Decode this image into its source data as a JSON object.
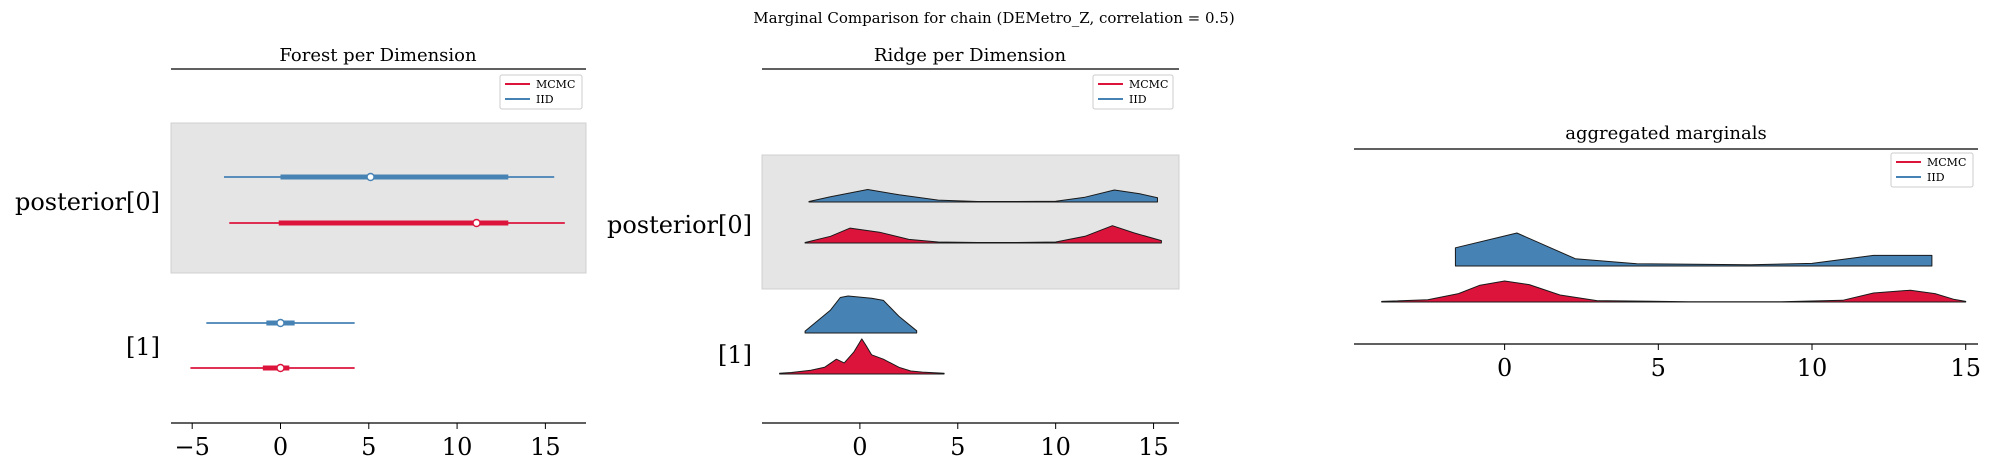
{
  "suptitle": "Marginal Comparison for chain (DEMetro_Z, correlation = 0.5)",
  "colors": {
    "mcmc": "#dc143c",
    "iid": "#4682b4",
    "band": "#e5e5e5"
  },
  "legend": [
    "MCMC",
    "IID"
  ],
  "chart_data": [
    {
      "type": "forest",
      "title": "Forest per Dimension",
      "xlim": [
        -6.2,
        17.3
      ],
      "xticks": [
        -5,
        0,
        5,
        10,
        15
      ],
      "legend_position": "upper right",
      "rows": [
        "posterior[0]",
        "[1]"
      ],
      "series": [
        {
          "name": "MCMC",
          "values": [
            {
              "row": "posterior[0]",
              "hdi_low": -2.9,
              "hdi_high": 16.1,
              "iqr_low": -0.1,
              "iqr_high": 12.9,
              "median": 11.1
            },
            {
              "row": "[1]",
              "hdi_low": -5.1,
              "hdi_high": 4.2,
              "iqr_low": -1.0,
              "iqr_high": 0.5,
              "median": 0.0
            }
          ]
        },
        {
          "name": "IID",
          "values": [
            {
              "row": "posterior[0]",
              "hdi_low": -3.2,
              "hdi_high": 15.5,
              "iqr_low": 0.0,
              "iqr_high": 12.9,
              "median": 5.1
            },
            {
              "row": "[1]",
              "hdi_low": -4.2,
              "hdi_high": 4.2,
              "iqr_low": -0.8,
              "iqr_high": 0.8,
              "median": 0.0
            }
          ]
        }
      ]
    },
    {
      "type": "ridge",
      "title": "Ridge per Dimension",
      "xlim": [
        -5.0,
        16.3
      ],
      "xticks": [
        0,
        5,
        10,
        15
      ],
      "legend_position": "upper right",
      "rows": [
        "posterior[0]",
        "[1]"
      ],
      "series": [
        {
          "name": "IID",
          "densities": [
            {
              "row": "posterior[0]",
              "points": [
                [
                  -2.6,
                  0.02
                ],
                [
                  -1.5,
                  0.22
                ],
                [
                  0.4,
                  0.52
                ],
                [
                  2,
                  0.3
                ],
                [
                  4,
                  0.08
                ],
                [
                  6,
                  0.02
                ],
                [
                  8,
                  0.02
                ],
                [
                  10,
                  0.03
                ],
                [
                  11.5,
                  0.2
                ],
                [
                  13,
                  0.5
                ],
                [
                  14.3,
                  0.34
                ],
                [
                  15.2,
                  0.18
                ]
              ]
            },
            {
              "row": "[1]",
              "points": [
                [
                  -2.8,
                  0.05
                ],
                [
                  -1.5,
                  0.62
                ],
                [
                  -1,
                  0.96
                ],
                [
                  -0.6,
                  1.0
                ],
                [
                  0.6,
                  0.94
                ],
                [
                  1.2,
                  0.88
                ],
                [
                  2,
                  0.45
                ],
                [
                  2.9,
                  0.06
                ]
              ]
            }
          ]
        },
        {
          "name": "MCMC",
          "densities": [
            {
              "row": "posterior[0]",
              "points": [
                [
                  -2.8,
                  0.02
                ],
                [
                  -1.5,
                  0.28
                ],
                [
                  -0.5,
                  0.62
                ],
                [
                  1,
                  0.45
                ],
                [
                  2.5,
                  0.15
                ],
                [
                  4,
                  0.04
                ],
                [
                  6,
                  0.02
                ],
                [
                  8,
                  0.02
                ],
                [
                  10,
                  0.04
                ],
                [
                  11.5,
                  0.28
                ],
                [
                  12.9,
                  0.72
                ],
                [
                  14,
                  0.42
                ],
                [
                  15.4,
                  0.1
                ]
              ]
            },
            {
              "row": "[1]",
              "points": [
                [
                  -4.1,
                  0.02
                ],
                [
                  -3.5,
                  0.04
                ],
                [
                  -2.5,
                  0.1
                ],
                [
                  -1.8,
                  0.18
                ],
                [
                  -1.2,
                  0.4
                ],
                [
                  -0.8,
                  0.3
                ],
                [
                  -0.3,
                  0.6
                ],
                [
                  0.1,
                  0.95
                ],
                [
                  0.3,
                  0.78
                ],
                [
                  0.6,
                  0.52
                ],
                [
                  1.2,
                  0.4
                ],
                [
                  2,
                  0.18
                ],
                [
                  2.6,
                  0.08
                ],
                [
                  3.2,
                  0.05
                ],
                [
                  4.3,
                  0.02
                ]
              ]
            }
          ]
        }
      ]
    },
    {
      "type": "area",
      "title": "aggregated marginals",
      "xlim": [
        -4.9,
        15.4
      ],
      "xticks": [
        0,
        5,
        10,
        15
      ],
      "legend_position": "upper right",
      "series": [
        {
          "name": "IID",
          "points": [
            [
              -1.6,
              0.55
            ],
            [
              0.4,
              1.0
            ],
            [
              2.3,
              0.22
            ],
            [
              4.3,
              0.07
            ],
            [
              8,
              0.04
            ],
            [
              10,
              0.08
            ],
            [
              12,
              0.32
            ],
            [
              13.9,
              0.32
            ]
          ]
        },
        {
          "name": "MCMC",
          "points": [
            [
              -4.0,
              0.02
            ],
            [
              -2.5,
              0.08
            ],
            [
              -1.5,
              0.3
            ],
            [
              -0.8,
              0.6
            ],
            [
              0.0,
              0.75
            ],
            [
              0.8,
              0.62
            ],
            [
              1.8,
              0.25
            ],
            [
              3,
              0.05
            ],
            [
              6,
              0.01
            ],
            [
              9,
              0.01
            ],
            [
              11,
              0.06
            ],
            [
              12,
              0.32
            ],
            [
              13.2,
              0.42
            ],
            [
              14,
              0.3
            ],
            [
              14.6,
              0.1
            ],
            [
              15.0,
              0.02
            ]
          ]
        }
      ]
    }
  ]
}
